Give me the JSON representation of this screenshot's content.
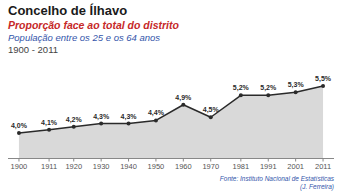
{
  "chart_data": {
    "type": "area",
    "title": "Concelho de Ílhavo",
    "subtitle": [
      "Proporção face ao total do distrito",
      "População entre os 25 e os 64 anos",
      "1900 - 2011"
    ],
    "annotations": [
      "Fonte: Instituto Nacional de Estatísticas",
      "(J. Ferreira)"
    ],
    "x": [
      1900,
      1911,
      1920,
      1930,
      1940,
      1950,
      1960,
      1970,
      1981,
      1991,
      2001,
      2011
    ],
    "values": [
      4.0,
      4.1,
      4.2,
      4.3,
      4.3,
      4.4,
      4.9,
      4.5,
      5.2,
      5.2,
      5.3,
      5.5
    ],
    "value_labels": [
      "4,0%",
      "4,1%",
      "4,2%",
      "4,3%",
      "4,3%",
      "4,4%",
      "4,9%",
      "4,5%",
      "5,2%",
      "5,2%",
      "5,3%",
      "5,5%"
    ],
    "data_labels": true,
    "color": "#2a2a2a",
    "xlim": [
      1896,
      2015
    ],
    "xticks": [
      1900,
      1911,
      1920,
      1930,
      1940,
      1950,
      1960,
      1970,
      1981,
      1991,
      2001,
      2011
    ],
    "ylim": [
      3.2,
      6.2
    ],
    "tick_labels": "x"
  }
}
